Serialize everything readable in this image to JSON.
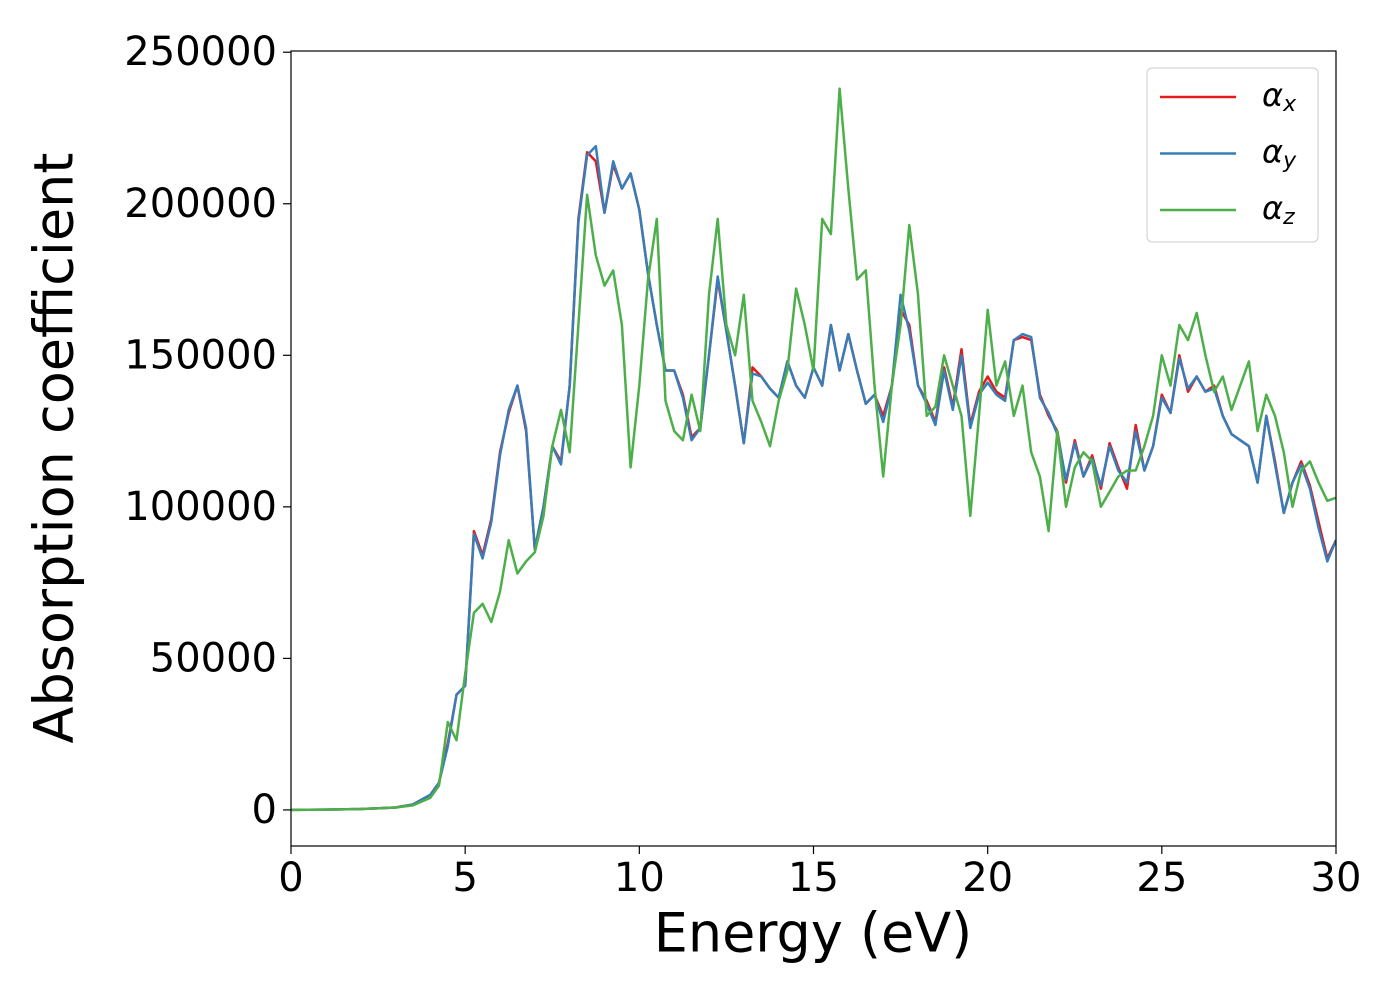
{
  "chart_data": {
    "type": "line",
    "xlabel": "Energy (eV)",
    "ylabel": "Absorption coefficient",
    "x": [
      0,
      1,
      2,
      3,
      3.5,
      4,
      4.25,
      4.5,
      4.75,
      5,
      5.25,
      5.5,
      5.75,
      6,
      6.25,
      6.5,
      6.75,
      7,
      7.25,
      7.5,
      7.75,
      8,
      8.25,
      8.5,
      8.75,
      9,
      9.25,
      9.5,
      9.75,
      10,
      10.25,
      10.5,
      10.75,
      11,
      11.25,
      11.5,
      11.75,
      12,
      12.25,
      12.5,
      12.75,
      13,
      13.25,
      13.5,
      13.75,
      14,
      14.25,
      14.5,
      14.75,
      15,
      15.25,
      15.5,
      15.75,
      16,
      16.25,
      16.5,
      16.75,
      17,
      17.25,
      17.5,
      17.75,
      18,
      18.25,
      18.5,
      18.75,
      19,
      19.25,
      19.5,
      19.75,
      20,
      20.25,
      20.5,
      20.75,
      21,
      21.25,
      21.5,
      21.75,
      22,
      22.25,
      22.5,
      22.75,
      23,
      23.25,
      23.5,
      23.75,
      24,
      24.25,
      24.5,
      24.75,
      25,
      25.25,
      25.5,
      25.75,
      26,
      26.25,
      26.5,
      26.75,
      27,
      27.25,
      27.5,
      27.75,
      28,
      28.25,
      28.5,
      28.75,
      29,
      29.25,
      29.5,
      29.75,
      30
    ],
    "series": [
      {
        "name": "αx",
        "color": "#e41a1c",
        "values": [
          0,
          100,
          300,
          800,
          1800,
          5000,
          9000,
          22000,
          38000,
          41000,
          92000,
          84000,
          96000,
          118000,
          131000,
          140000,
          125000,
          86000,
          100000,
          120000,
          115000,
          140000,
          195000,
          217000,
          214000,
          197000,
          213000,
          205000,
          210000,
          198000,
          177000,
          160000,
          145000,
          145000,
          137000,
          123000,
          126000,
          150000,
          175000,
          158000,
          140000,
          121000,
          146000,
          143000,
          139000,
          136000,
          148000,
          140000,
          136000,
          146000,
          140000,
          160000,
          145000,
          157000,
          145000,
          134000,
          137000,
          130000,
          140000,
          165000,
          160000,
          140000,
          135000,
          128000,
          146000,
          133000,
          152000,
          127000,
          138000,
          143000,
          138000,
          136000,
          155000,
          156000,
          155000,
          137000,
          130000,
          125000,
          108000,
          122000,
          110000,
          117000,
          106000,
          121000,
          113000,
          106000,
          127000,
          112000,
          120000,
          137000,
          131000,
          150000,
          138000,
          143000,
          138000,
          140000,
          130000,
          124000,
          122000,
          120000,
          108000,
          130000,
          115000,
          98000,
          108000,
          115000,
          107000,
          95000,
          83000,
          89000
        ]
      },
      {
        "name": "αy",
        "color": "#377eb8",
        "values": [
          0,
          100,
          300,
          800,
          1800,
          5000,
          9000,
          21000,
          38000,
          41000,
          91000,
          83000,
          95000,
          117000,
          132000,
          140000,
          126000,
          86000,
          100000,
          120000,
          114000,
          140000,
          194000,
          216000,
          219000,
          197000,
          214000,
          205000,
          210000,
          198000,
          177000,
          160000,
          145000,
          145000,
          136000,
          122000,
          126000,
          150000,
          176000,
          158000,
          140000,
          121000,
          144000,
          143000,
          139000,
          136000,
          148000,
          140000,
          136000,
          146000,
          140000,
          160000,
          145000,
          157000,
          145000,
          134000,
          137000,
          128000,
          140000,
          170000,
          158000,
          140000,
          134000,
          127000,
          145000,
          132000,
          150000,
          126000,
          137000,
          141000,
          137000,
          135000,
          155000,
          157000,
          156000,
          136000,
          131000,
          124000,
          109000,
          121000,
          110000,
          116000,
          107000,
          120000,
          112000,
          108000,
          125000,
          112000,
          120000,
          136000,
          131000,
          149000,
          139000,
          143000,
          138000,
          139000,
          130000,
          124000,
          122000,
          120000,
          108000,
          130000,
          114000,
          98000,
          108000,
          114000,
          106000,
          93000,
          82000,
          89000
        ]
      },
      {
        "name": "αz",
        "color": "#4daf4a",
        "values": [
          0,
          100,
          300,
          800,
          1500,
          4000,
          8000,
          29000,
          23000,
          45000,
          65000,
          68000,
          62000,
          72000,
          89000,
          78000,
          82000,
          85000,
          97000,
          120000,
          132000,
          118000,
          160000,
          203000,
          183000,
          173000,
          178000,
          160000,
          113000,
          140000,
          175000,
          195000,
          135000,
          125000,
          122000,
          137000,
          125000,
          170000,
          195000,
          160000,
          150000,
          170000,
          135000,
          128000,
          120000,
          135000,
          145000,
          172000,
          160000,
          145000,
          195000,
          190000,
          238000,
          205000,
          175000,
          178000,
          140000,
          110000,
          140000,
          160000,
          193000,
          170000,
          130000,
          133000,
          150000,
          140000,
          130000,
          97000,
          130000,
          165000,
          140000,
          148000,
          130000,
          140000,
          118000,
          110000,
          92000,
          125000,
          100000,
          113000,
          118000,
          115000,
          100000,
          105000,
          110000,
          112000,
          112000,
          120000,
          130000,
          150000,
          140000,
          160000,
          155000,
          164000,
          150000,
          138000,
          143000,
          132000,
          140000,
          148000,
          125000,
          137000,
          130000,
          118000,
          100000,
          112000,
          115000,
          108000,
          102000,
          103000
        ]
      }
    ],
    "xlim": [
      0,
      30
    ],
    "xticks": [
      0,
      5,
      10,
      15,
      20,
      25,
      30
    ],
    "ylim": [
      -11900,
      250400
    ],
    "yticks": [
      0,
      50000,
      100000,
      150000,
      200000,
      250000
    ],
    "legend": "upper right"
  }
}
